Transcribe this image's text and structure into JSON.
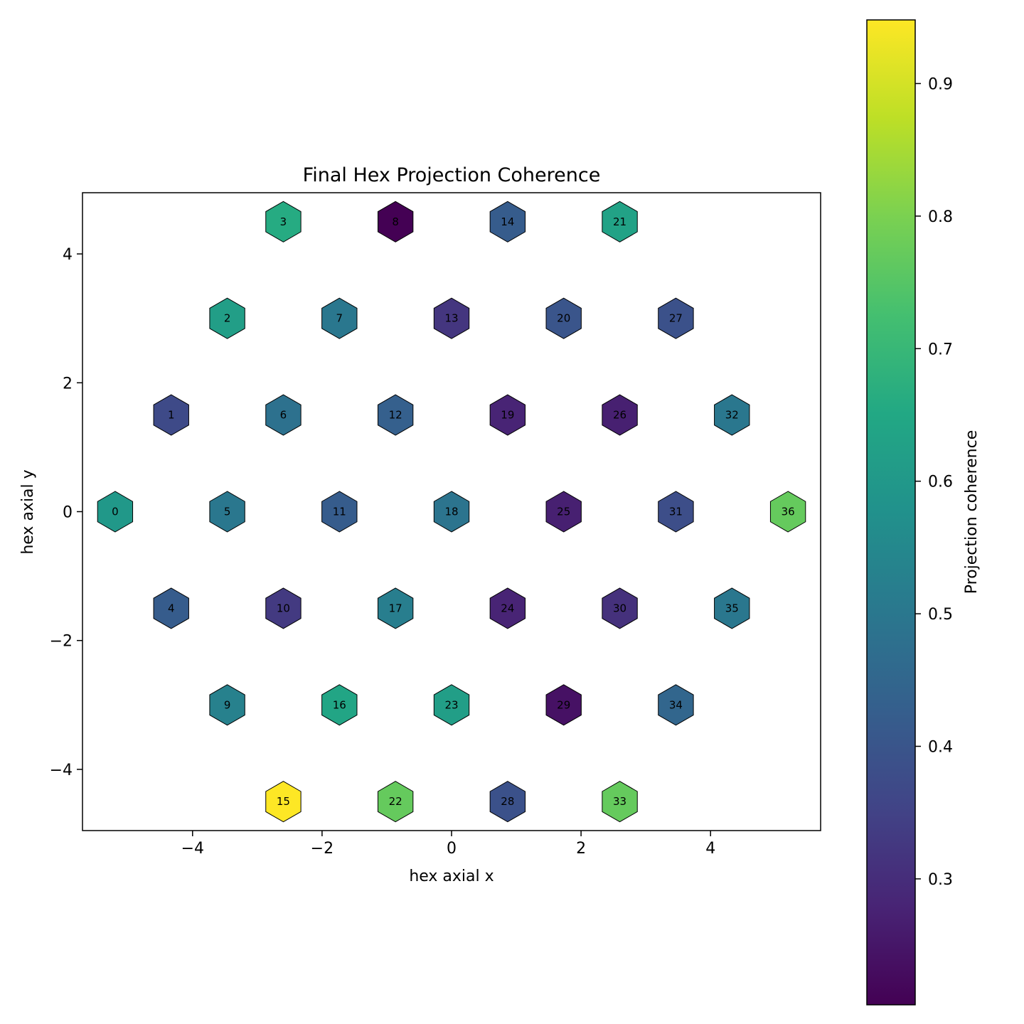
{
  "chart_data": {
    "type": "hexbin",
    "title": "Final Hex Projection Coherence",
    "xlabel": "hex axial x",
    "ylabel": "hex axial y",
    "xlim": [
      -5.7,
      5.7
    ],
    "ylim": [
      -4.95,
      4.95
    ],
    "x_ticks": [
      -4,
      -2,
      0,
      2,
      4
    ],
    "y_ticks": [
      -4,
      -2,
      0,
      2,
      4
    ],
    "colorbar": {
      "label": "Projection coherence",
      "range": [
        0.205,
        0.948
      ],
      "ticks": [
        0.3,
        0.4,
        0.5,
        0.6,
        0.7,
        0.8,
        0.9
      ],
      "colormap": "viridis"
    },
    "cells": [
      {
        "id": "0",
        "x": -5.196,
        "y": 0.0,
        "value": 0.6
      },
      {
        "id": "1",
        "x": -4.33,
        "y": 1.5,
        "value": 0.37
      },
      {
        "id": "2",
        "x": -3.464,
        "y": 3.0,
        "value": 0.62
      },
      {
        "id": "3",
        "x": -2.598,
        "y": 4.5,
        "value": 0.66
      },
      {
        "id": "4",
        "x": -4.33,
        "y": -1.5,
        "value": 0.42
      },
      {
        "id": "5",
        "x": -3.464,
        "y": 0.0,
        "value": 0.5
      },
      {
        "id": "6",
        "x": -2.598,
        "y": 1.5,
        "value": 0.48
      },
      {
        "id": "7",
        "x": -1.732,
        "y": 3.0,
        "value": 0.5
      },
      {
        "id": "8",
        "x": -0.866,
        "y": 4.5,
        "value": 0.205
      },
      {
        "id": "9",
        "x": -3.464,
        "y": -3.0,
        "value": 0.53
      },
      {
        "id": "10",
        "x": -2.598,
        "y": -1.5,
        "value": 0.33
      },
      {
        "id": "11",
        "x": -1.732,
        "y": 0.0,
        "value": 0.42
      },
      {
        "id": "12",
        "x": -0.866,
        "y": 1.5,
        "value": 0.43
      },
      {
        "id": "13",
        "x": 0.0,
        "y": 3.0,
        "value": 0.32
      },
      {
        "id": "14",
        "x": 0.866,
        "y": 4.5,
        "value": 0.42
      },
      {
        "id": "15",
        "x": -2.598,
        "y": -4.5,
        "value": 0.948
      },
      {
        "id": "16",
        "x": -1.732,
        "y": -3.0,
        "value": 0.64
      },
      {
        "id": "17",
        "x": -0.866,
        "y": -1.5,
        "value": 0.52
      },
      {
        "id": "18",
        "x": 0.0,
        "y": 0.0,
        "value": 0.49
      },
      {
        "id": "19",
        "x": 0.866,
        "y": 1.5,
        "value": 0.28
      },
      {
        "id": "20",
        "x": 1.732,
        "y": 3.0,
        "value": 0.4
      },
      {
        "id": "21",
        "x": 2.598,
        "y": 4.5,
        "value": 0.63
      },
      {
        "id": "22",
        "x": -0.866,
        "y": -4.5,
        "value": 0.77
      },
      {
        "id": "23",
        "x": 0.0,
        "y": -3.0,
        "value": 0.62
      },
      {
        "id": "24",
        "x": 0.866,
        "y": -1.5,
        "value": 0.28
      },
      {
        "id": "25",
        "x": 1.732,
        "y": 0.0,
        "value": 0.27
      },
      {
        "id": "26",
        "x": 2.598,
        "y": 1.5,
        "value": 0.27
      },
      {
        "id": "27",
        "x": 3.464,
        "y": 3.0,
        "value": 0.39
      },
      {
        "id": "28",
        "x": 0.866,
        "y": -4.5,
        "value": 0.39
      },
      {
        "id": "29",
        "x": 1.732,
        "y": -3.0,
        "value": 0.24
      },
      {
        "id": "30",
        "x": 2.598,
        "y": -1.5,
        "value": 0.31
      },
      {
        "id": "31",
        "x": 3.464,
        "y": 0.0,
        "value": 0.38
      },
      {
        "id": "32",
        "x": 4.33,
        "y": 1.5,
        "value": 0.5
      },
      {
        "id": "33",
        "x": 2.598,
        "y": -4.5,
        "value": 0.77
      },
      {
        "id": "34",
        "x": 3.464,
        "y": -3.0,
        "value": 0.45
      },
      {
        "id": "35",
        "x": 4.33,
        "y": -1.5,
        "value": 0.5
      },
      {
        "id": "36",
        "x": 5.196,
        "y": 0.0,
        "value": 0.77
      }
    ]
  }
}
